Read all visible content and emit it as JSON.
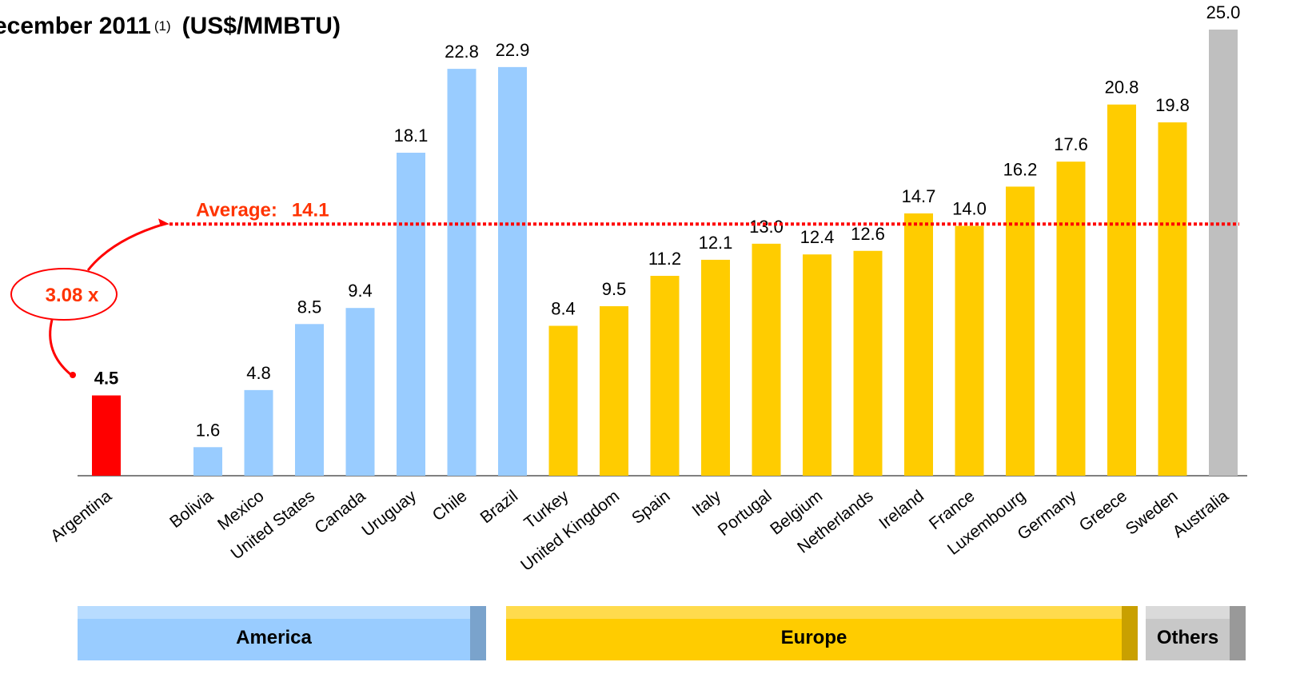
{
  "chart_data": {
    "type": "bar",
    "title": "ecember 2011",
    "title_note": "(1)",
    "unit": "(US$/MMBTU)",
    "categories": [
      "Argentina",
      null,
      "Bolivia",
      "Mexico",
      "United States",
      "Canada",
      "Uruguay",
      "Chile",
      "Brazil",
      "Turkey",
      "United Kingdom",
      "Spain",
      "Italy",
      "Portugal",
      "Belgium",
      "Netherlands",
      "Ireland",
      "France",
      "Luxembourg",
      "Germany",
      "Greece",
      "Sweden",
      "Australia"
    ],
    "values": [
      4.5,
      null,
      1.6,
      4.8,
      8.5,
      9.4,
      18.1,
      22.8,
      22.9,
      8.4,
      9.5,
      11.2,
      12.1,
      13.0,
      12.4,
      12.6,
      14.7,
      14.0,
      16.2,
      17.6,
      20.8,
      19.8,
      25.0
    ],
    "value_labels": [
      "4.5",
      null,
      "1.6",
      "4.8",
      "8.5",
      "9.4",
      "18.1",
      "22.8",
      "22.9",
      "8.4",
      "9.5",
      "11.2",
      "12.1",
      "13.0",
      "12.4",
      "12.6",
      "14.7",
      "14.0",
      "16.2",
      "17.6",
      "20.8",
      "19.8",
      "25.0"
    ],
    "colors": [
      "#ff0000",
      null,
      "#99ccff",
      "#99ccff",
      "#99ccff",
      "#99ccff",
      "#99ccff",
      "#99ccff",
      "#99ccff",
      "#ffcc00",
      "#ffcc00",
      "#ffcc00",
      "#ffcc00",
      "#ffcc00",
      "#ffcc00",
      "#ffcc00",
      "#ffcc00",
      "#ffcc00",
      "#ffcc00",
      "#ffcc00",
      "#ffcc00",
      "#ffcc00",
      "#bfbfbf"
    ],
    "ylim": [
      0,
      25
    ],
    "average": {
      "label": "Average:",
      "value": 14.1,
      "color": "#ff0000"
    },
    "ratio_label": "3.08 x",
    "groups": [
      {
        "name": "America",
        "color": "#99ccff"
      },
      {
        "name": "Europe",
        "color": "#ffcc00"
      },
      {
        "name": "Others",
        "color": "#c8c8c8"
      }
    ]
  }
}
